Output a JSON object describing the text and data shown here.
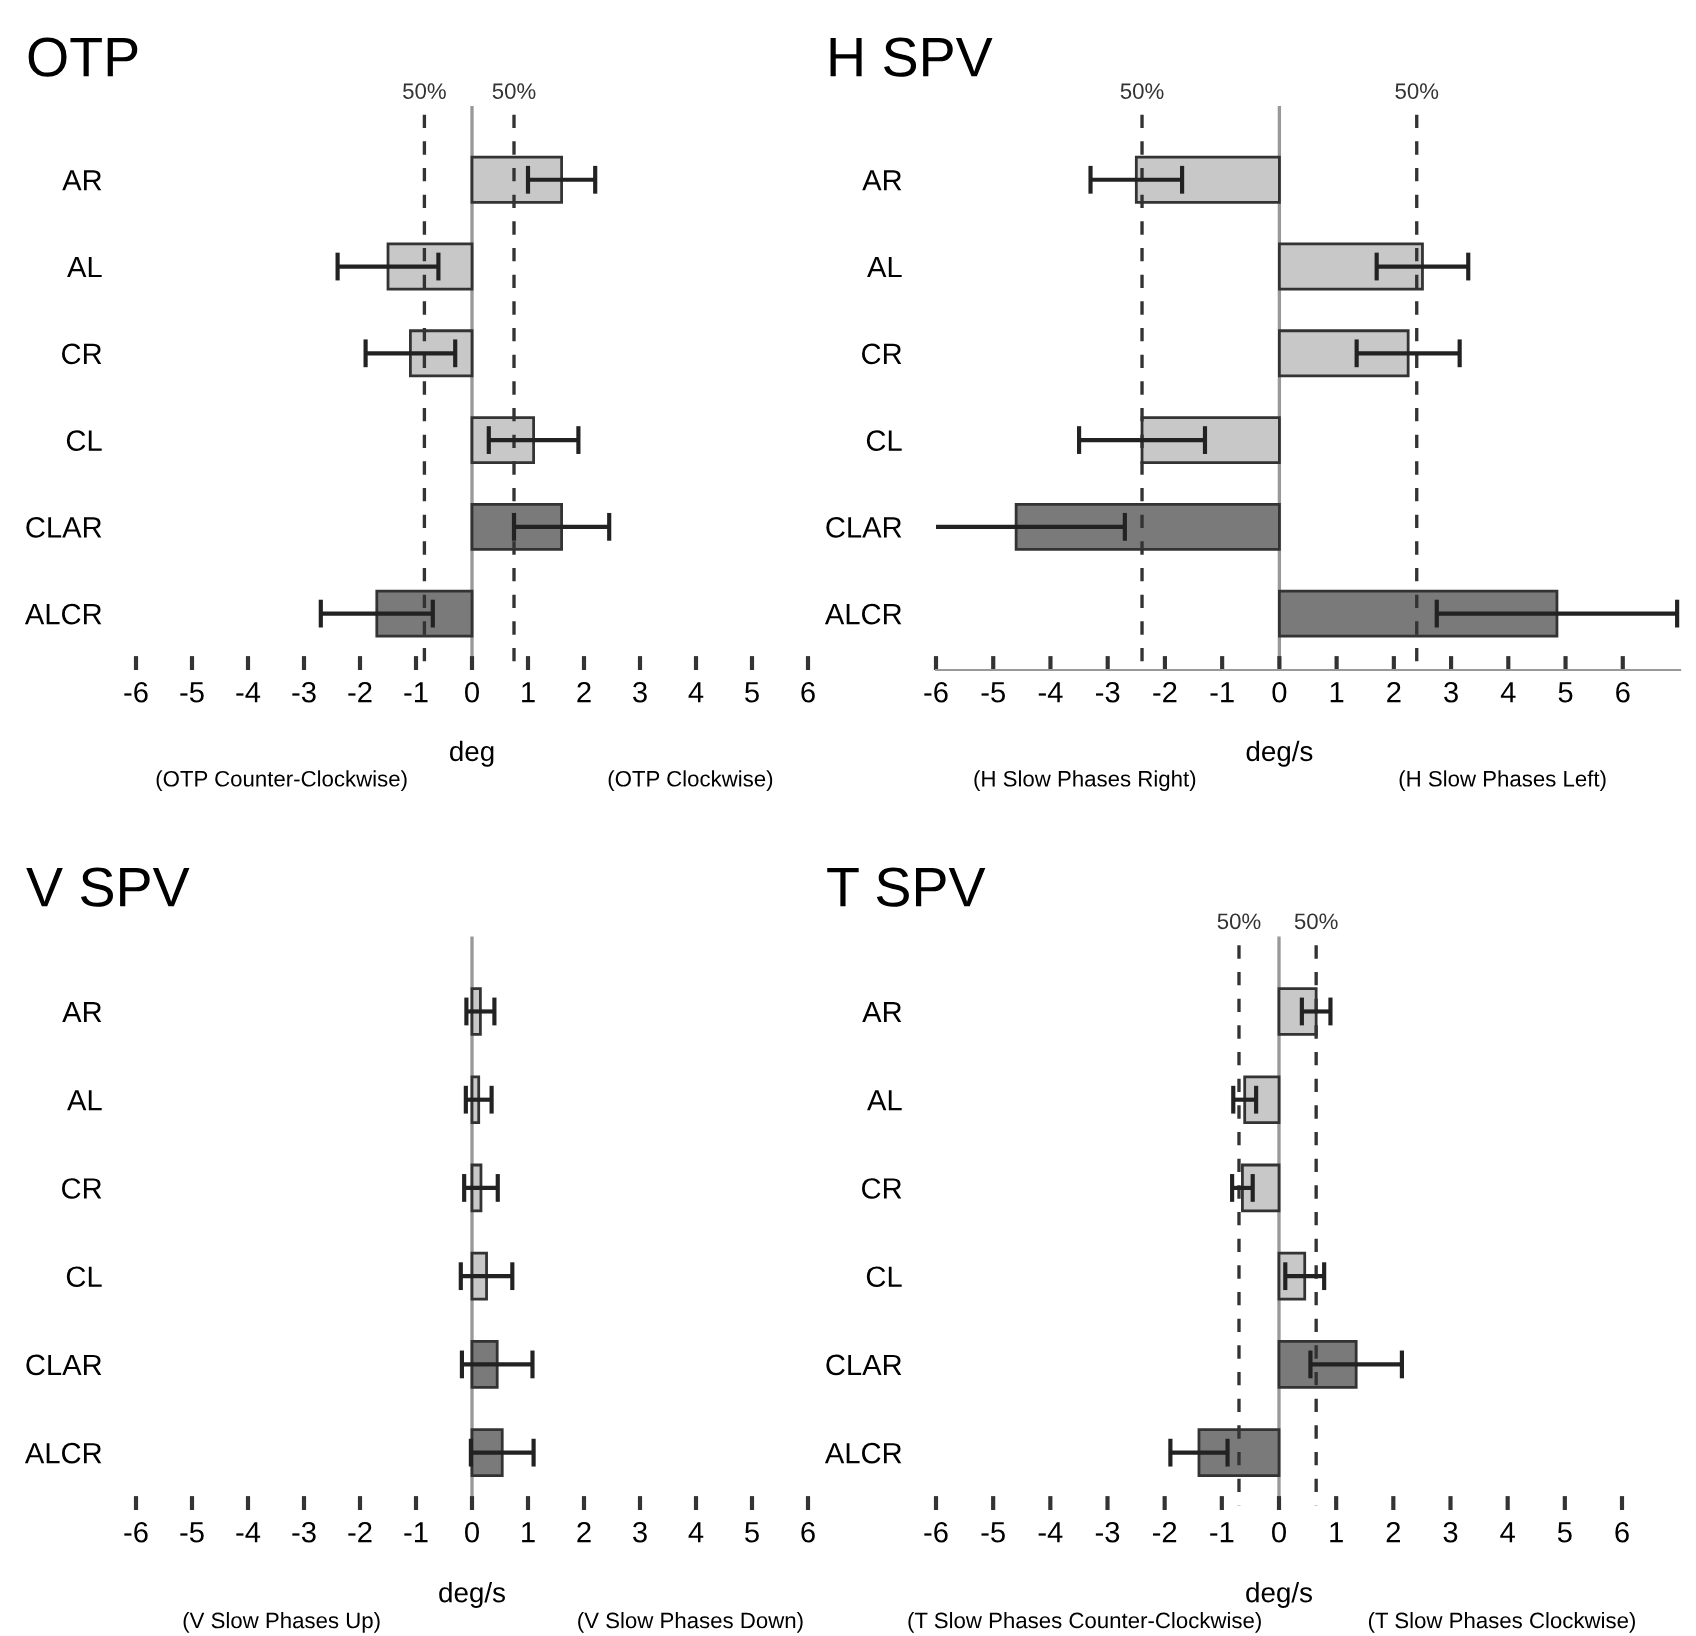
{
  "chart_data": [
    {
      "type": "bar",
      "orientation": "horizontal",
      "title": "OTP",
      "xlabel": "deg",
      "categories": [
        "AR",
        "AL",
        "CR",
        "CL",
        "CLAR",
        "ALCR"
      ],
      "values": [
        1.6,
        -1.5,
        -1.1,
        1.1,
        1.6,
        -1.7
      ],
      "errors": [
        0.6,
        0.9,
        0.8,
        0.8,
        0.85,
        1.0
      ],
      "colors": [
        "#c8c8c8",
        "#c8c8c8",
        "#c8c8c8",
        "#c8c8c8",
        "#7a7a7a",
        "#7a7a7a"
      ],
      "xlim": [
        -6,
        6
      ],
      "xticks": [
        -6,
        -5,
        -4,
        -3,
        -2,
        -1,
        0,
        1,
        2,
        3,
        4,
        5,
        6
      ],
      "ref_lines": [
        {
          "axis": "x",
          "value": -0.85,
          "line_style": "dashed",
          "color": "#333333"
        },
        {
          "axis": "x",
          "value": 0.75,
          "line_style": "dashed",
          "color": "#333333"
        }
      ],
      "annotations": [
        "50%",
        "50%",
        "(OTP Counter-Clockwise)",
        "(OTP Clockwise)"
      ]
    },
    {
      "type": "bar",
      "orientation": "horizontal",
      "title": "H SPV",
      "xlabel": "deg/s",
      "categories": [
        "AR",
        "AL",
        "CR",
        "CL",
        "CLAR",
        "ALCR"
      ],
      "values": [
        -2.5,
        2.5,
        2.25,
        -2.4,
        -4.6,
        4.85
      ],
      "errors": [
        0.8,
        0.8,
        0.9,
        1.1,
        1.9,
        2.1
      ],
      "colors": [
        "#c8c8c8",
        "#c8c8c8",
        "#c8c8c8",
        "#c8c8c8",
        "#7a7a7a",
        "#7a7a7a"
      ],
      "xlim": [
        -6,
        7.0
      ],
      "xticks": [
        -6,
        -5,
        -4,
        -3,
        -2,
        -1,
        0,
        1,
        2,
        3,
        4,
        5,
        6
      ],
      "ref_lines": [
        {
          "axis": "x",
          "value": -2.4,
          "line_style": "dashed",
          "color": "#333333"
        },
        {
          "axis": "x",
          "value": 2.4,
          "line_style": "dashed",
          "color": "#333333"
        }
      ],
      "annotations": [
        "50%",
        "50%",
        "(H Slow Phases Right)",
        "(H Slow Phases Left)"
      ]
    },
    {
      "type": "bar",
      "orientation": "horizontal",
      "title": "V SPV",
      "xlabel": "deg/s",
      "categories": [
        "AR",
        "AL",
        "CR",
        "CL",
        "CLAR",
        "ALCR"
      ],
      "values": [
        0.15,
        0.12,
        0.16,
        0.26,
        0.45,
        0.54
      ],
      "errors": [
        0.25,
        0.23,
        0.3,
        0.46,
        0.63,
        0.56
      ],
      "colors": [
        "#c8c8c8",
        "#c8c8c8",
        "#c8c8c8",
        "#c8c8c8",
        "#7a7a7a",
        "#7a7a7a"
      ],
      "xlim": [
        -6,
        6
      ],
      "xticks": [
        -6,
        -5,
        -4,
        -3,
        -2,
        -1,
        0,
        1,
        2,
        3,
        4,
        5,
        6
      ],
      "annotations": [
        "(V Slow Phases Up)",
        "(V Slow Phases Down)"
      ]
    },
    {
      "type": "bar",
      "orientation": "horizontal",
      "title": "T SPV",
      "xlabel": "deg/s",
      "categories": [
        "AR",
        "AL",
        "CR",
        "CL",
        "CLAR",
        "ALCR"
      ],
      "values": [
        0.65,
        -0.6,
        -0.64,
        0.45,
        1.35,
        -1.4
      ],
      "errors": [
        0.25,
        0.2,
        0.18,
        0.34,
        0.8,
        0.5
      ],
      "colors": [
        "#c8c8c8",
        "#c8c8c8",
        "#c8c8c8",
        "#c8c8c8",
        "#7a7a7a",
        "#7a7a7a"
      ],
      "xlim": [
        -6,
        6
      ],
      "xticks": [
        -6,
        -5,
        -4,
        -3,
        -2,
        -1,
        0,
        1,
        2,
        3,
        4,
        5,
        6
      ],
      "ref_lines": [
        {
          "axis": "x",
          "value": -0.7,
          "line_style": "dashed",
          "color": "#333333"
        },
        {
          "axis": "x",
          "value": 0.65,
          "line_style": "dashed",
          "color": "#333333"
        }
      ],
      "annotations": [
        "50%",
        "50%",
        "(T Slow Phases Counter-Clockwise)",
        "(T Slow Phases Clockwise)"
      ]
    }
  ]
}
